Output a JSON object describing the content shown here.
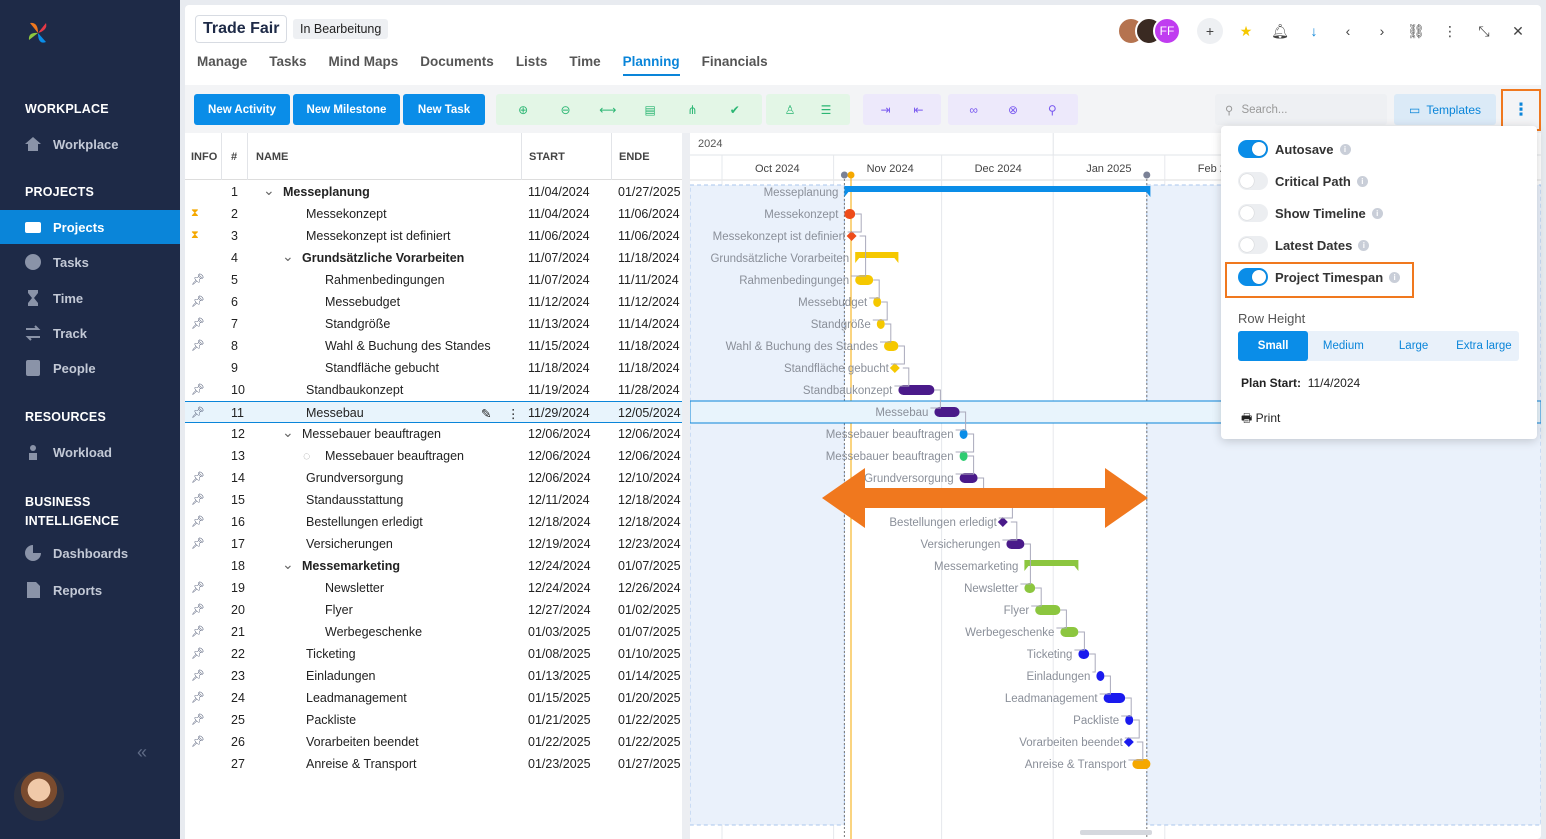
{
  "sidebar": {
    "sections": {
      "workplace": "WORKPLACE",
      "projects": "PROJECTS",
      "resources": "RESOURCES",
      "bi": "BUSINESS INTELLIGENCE"
    },
    "items": {
      "workplace": "Workplace",
      "projects": "Projects",
      "tasks": "Tasks",
      "time": "Time",
      "track": "Track",
      "people": "People",
      "workload": "Workload",
      "dashboards": "Dashboards",
      "reports": "Reports"
    },
    "collapse": "«"
  },
  "header": {
    "project_title": "Trade Fair",
    "status": "In Bearbeitung",
    "avatar_initials": "FF",
    "tabs": [
      "Manage",
      "Tasks",
      "Mind Maps",
      "Documents",
      "Lists",
      "Time",
      "Planning",
      "Financials"
    ],
    "active_tab": "Planning"
  },
  "toolbar": {
    "new_activity": "New Activity",
    "new_milestone": "New Milestone",
    "new_task": "New Task",
    "search_placeholder": "Search...",
    "templates": "Templates"
  },
  "grid": {
    "headers": {
      "info": "INFO",
      "num": "#",
      "name": "NAME",
      "start": "START",
      "end": "ENDE"
    },
    "rows": [
      {
        "n": "1",
        "name": "Messeplanung",
        "start": "11/04/2024",
        "end": "01/27/2025",
        "level": 0,
        "bold": true,
        "group": true,
        "icon": ""
      },
      {
        "n": "2",
        "name": "Messekonzept",
        "start": "11/04/2024",
        "end": "11/06/2024",
        "level": 1,
        "icon": "hourglass"
      },
      {
        "n": "3",
        "name": "Messekonzept ist definiert",
        "start": "11/06/2024",
        "end": "11/06/2024",
        "level": 1,
        "icon": "hourglass"
      },
      {
        "n": "4",
        "name": "Grundsätzliche Vorarbeiten",
        "start": "11/07/2024",
        "end": "11/18/2024",
        "level": 1,
        "bold": true,
        "group": true,
        "icon": ""
      },
      {
        "n": "5",
        "name": "Rahmenbedingungen",
        "start": "11/07/2024",
        "end": "11/11/2024",
        "level": 2,
        "icon": "pin"
      },
      {
        "n": "6",
        "name": "Messebudget",
        "start": "11/12/2024",
        "end": "11/12/2024",
        "level": 2,
        "icon": "pin"
      },
      {
        "n": "7",
        "name": "Standgröße",
        "start": "11/13/2024",
        "end": "11/14/2024",
        "level": 2,
        "icon": "pin"
      },
      {
        "n": "8",
        "name": "Wahl & Buchung des Standes",
        "start": "11/15/2024",
        "end": "11/18/2024",
        "level": 2,
        "icon": "pin"
      },
      {
        "n": "9",
        "name": "Standfläche gebucht",
        "start": "11/18/2024",
        "end": "11/18/2024",
        "level": 2,
        "icon": ""
      },
      {
        "n": "10",
        "name": "Standbaukonzept",
        "start": "11/19/2024",
        "end": "11/28/2024",
        "level": 1,
        "icon": "pin"
      },
      {
        "n": "11",
        "name": "Messebau",
        "start": "11/29/2024",
        "end": "12/05/2024",
        "level": 1,
        "icon": "pin",
        "selected": true
      },
      {
        "n": "12",
        "name": "Messebauer beauftragen",
        "start": "12/06/2024",
        "end": "12/06/2024",
        "level": 1,
        "group": true,
        "icon": ""
      },
      {
        "n": "13",
        "name": "Messebauer beauftragen",
        "start": "12/06/2024",
        "end": "12/06/2024",
        "level": 2,
        "check": true,
        "icon": ""
      },
      {
        "n": "14",
        "name": "Grundversorgung",
        "start": "12/06/2024",
        "end": "12/10/2024",
        "level": 1,
        "icon": "pin"
      },
      {
        "n": "15",
        "name": "Standausstattung",
        "start": "12/11/2024",
        "end": "12/18/2024",
        "level": 1,
        "icon": "pin"
      },
      {
        "n": "16",
        "name": "Bestellungen erledigt",
        "start": "12/18/2024",
        "end": "12/18/2024",
        "level": 1,
        "icon": "pin"
      },
      {
        "n": "17",
        "name": "Versicherungen",
        "start": "12/19/2024",
        "end": "12/23/2024",
        "level": 1,
        "icon": "pin"
      },
      {
        "n": "18",
        "name": "Messemarketing",
        "start": "12/24/2024",
        "end": "01/07/2025",
        "level": 1,
        "bold": true,
        "group": true,
        "icon": ""
      },
      {
        "n": "19",
        "name": "Newsletter",
        "start": "12/24/2024",
        "end": "12/26/2024",
        "level": 2,
        "icon": "pin"
      },
      {
        "n": "20",
        "name": "Flyer",
        "start": "12/27/2024",
        "end": "01/02/2025",
        "level": 2,
        "icon": "pin"
      },
      {
        "n": "21",
        "name": "Werbegeschenke",
        "start": "01/03/2025",
        "end": "01/07/2025",
        "level": 2,
        "icon": "pin"
      },
      {
        "n": "22",
        "name": "Ticketing",
        "start": "01/08/2025",
        "end": "01/10/2025",
        "level": 1,
        "icon": "pin"
      },
      {
        "n": "23",
        "name": "Einladungen",
        "start": "01/13/2025",
        "end": "01/14/2025",
        "level": 1,
        "icon": "pin"
      },
      {
        "n": "24",
        "name": "Leadmanagement",
        "start": "01/15/2025",
        "end": "01/20/2025",
        "level": 1,
        "icon": "pin"
      },
      {
        "n": "25",
        "name": "Packliste",
        "start": "01/21/2025",
        "end": "01/22/2025",
        "level": 1,
        "icon": "pin"
      },
      {
        "n": "26",
        "name": "Vorarbeiten beendet",
        "start": "01/22/2025",
        "end": "01/22/2025",
        "level": 1,
        "icon": "pin"
      },
      {
        "n": "27",
        "name": "Anreise & Transport",
        "start": "01/23/2025",
        "end": "01/27/2025",
        "level": 1,
        "icon": ""
      }
    ]
  },
  "gantt": {
    "year": "2024",
    "months": [
      "Oct 2024",
      "Nov 2024",
      "Dec 2024",
      "Jan 2025",
      "Feb 2"
    ],
    "bars": [
      {
        "label": "Messeplanung",
        "type": "summary",
        "color": "#0a8de8",
        "start": "11/04/2024",
        "end": "01/27/2025"
      },
      {
        "label": "Messekonzept",
        "type": "task",
        "color": "#ee4c1a",
        "start": "11/04/2024",
        "end": "11/06/2024"
      },
      {
        "label": "Messekonzept ist definiert",
        "type": "milestone",
        "color": "#ee4c1a",
        "start": "11/06/2024",
        "end": "11/06/2024"
      },
      {
        "label": "Grundsätzliche Vorarbeiten",
        "type": "summary",
        "color": "#f5c800",
        "start": "11/07/2024",
        "end": "11/18/2024"
      },
      {
        "label": "Rahmenbedingungen",
        "type": "task",
        "color": "#f5c800",
        "start": "11/07/2024",
        "end": "11/11/2024"
      },
      {
        "label": "Messebudget",
        "type": "task",
        "color": "#f5c800",
        "start": "11/12/2024",
        "end": "11/12/2024"
      },
      {
        "label": "Standgröße",
        "type": "task",
        "color": "#f5c800",
        "start": "11/13/2024",
        "end": "11/14/2024"
      },
      {
        "label": "Wahl & Buchung des Standes",
        "type": "task",
        "color": "#f5c800",
        "start": "11/15/2024",
        "end": "11/18/2024"
      },
      {
        "label": "Standfläche gebucht",
        "type": "milestone",
        "color": "#f5c800",
        "start": "11/18/2024",
        "end": "11/18/2024"
      },
      {
        "label": "Standbaukonzept",
        "type": "task",
        "color": "#4a1a8a",
        "start": "11/19/2024",
        "end": "11/28/2024"
      },
      {
        "label": "Messebau",
        "type": "task",
        "color": "#4a1a8a",
        "start": "11/29/2024",
        "end": "12/05/2024"
      },
      {
        "label": "Messebauer beauftragen",
        "type": "task",
        "color": "#0a8de8",
        "start": "12/06/2024",
        "end": "12/06/2024"
      },
      {
        "label": "Messebauer beauftragen",
        "type": "task",
        "color": "#2ecc71",
        "start": "12/06/2024",
        "end": "12/06/2024"
      },
      {
        "label": "Grundversorgung",
        "type": "task",
        "color": "#4a1a8a",
        "start": "12/06/2024",
        "end": "12/10/2024"
      },
      {
        "label": "Standausstattung",
        "type": "task",
        "color": "#4a1a8a",
        "start": "12/11/2024",
        "end": "12/18/2024"
      },
      {
        "label": "Bestellungen erledigt",
        "type": "milestone",
        "color": "#4a1a8a",
        "start": "12/18/2024",
        "end": "12/18/2024"
      },
      {
        "label": "Versicherungen",
        "type": "task",
        "color": "#4a1a8a",
        "start": "12/19/2024",
        "end": "12/23/2024"
      },
      {
        "label": "Messemarketing",
        "type": "summary",
        "color": "#8cc63f",
        "start": "12/24/2024",
        "end": "01/07/2025"
      },
      {
        "label": "Newsletter",
        "type": "task",
        "color": "#8cc63f",
        "start": "12/24/2024",
        "end": "12/26/2024"
      },
      {
        "label": "Flyer",
        "type": "task",
        "color": "#8cc63f",
        "start": "12/27/2024",
        "end": "01/02/2025"
      },
      {
        "label": "Werbegeschenke",
        "type": "task",
        "color": "#8cc63f",
        "start": "01/03/2025",
        "end": "01/07/2025"
      },
      {
        "label": "Ticketing",
        "type": "task",
        "color": "#1a1aee",
        "start": "01/08/2025",
        "end": "01/10/2025"
      },
      {
        "label": "Einladungen",
        "type": "task",
        "color": "#1a1aee",
        "start": "01/13/2025",
        "end": "01/14/2025"
      },
      {
        "label": "Leadmanagement",
        "type": "task",
        "color": "#1a1aee",
        "start": "01/15/2025",
        "end": "01/20/2025"
      },
      {
        "label": "Packliste",
        "type": "task",
        "color": "#1a1aee",
        "start": "01/21/2025",
        "end": "01/22/2025"
      },
      {
        "label": "Vorarbeiten beendet",
        "type": "milestone",
        "color": "#1a1aee",
        "start": "01/22/2025",
        "end": "01/22/2025"
      },
      {
        "label": "Anreise & Transport",
        "type": "task",
        "color": "#f5a800",
        "start": "01/23/2025",
        "end": "01/27/2025"
      }
    ],
    "project_span": {
      "start": "11/04/2024",
      "end": "01/27/2025"
    },
    "today": "11/05/2024",
    "arrow_color": "#f0781e"
  },
  "settings": {
    "autosave": {
      "label": "Autosave",
      "on": true
    },
    "critical_path": {
      "label": "Critical Path",
      "on": false
    },
    "show_timeline": {
      "label": "Show Timeline",
      "on": false
    },
    "latest_dates": {
      "label": "Latest Dates",
      "on": false
    },
    "project_timespan": {
      "label": "Project Timespan",
      "on": true
    },
    "row_height_label": "Row Height",
    "row_heights": [
      "Small",
      "Medium",
      "Large",
      "Extra large"
    ],
    "row_height_selected": "Small",
    "plan_start_label": "Plan Start:",
    "plan_start_value": "11/4/2024",
    "print": "Print"
  }
}
